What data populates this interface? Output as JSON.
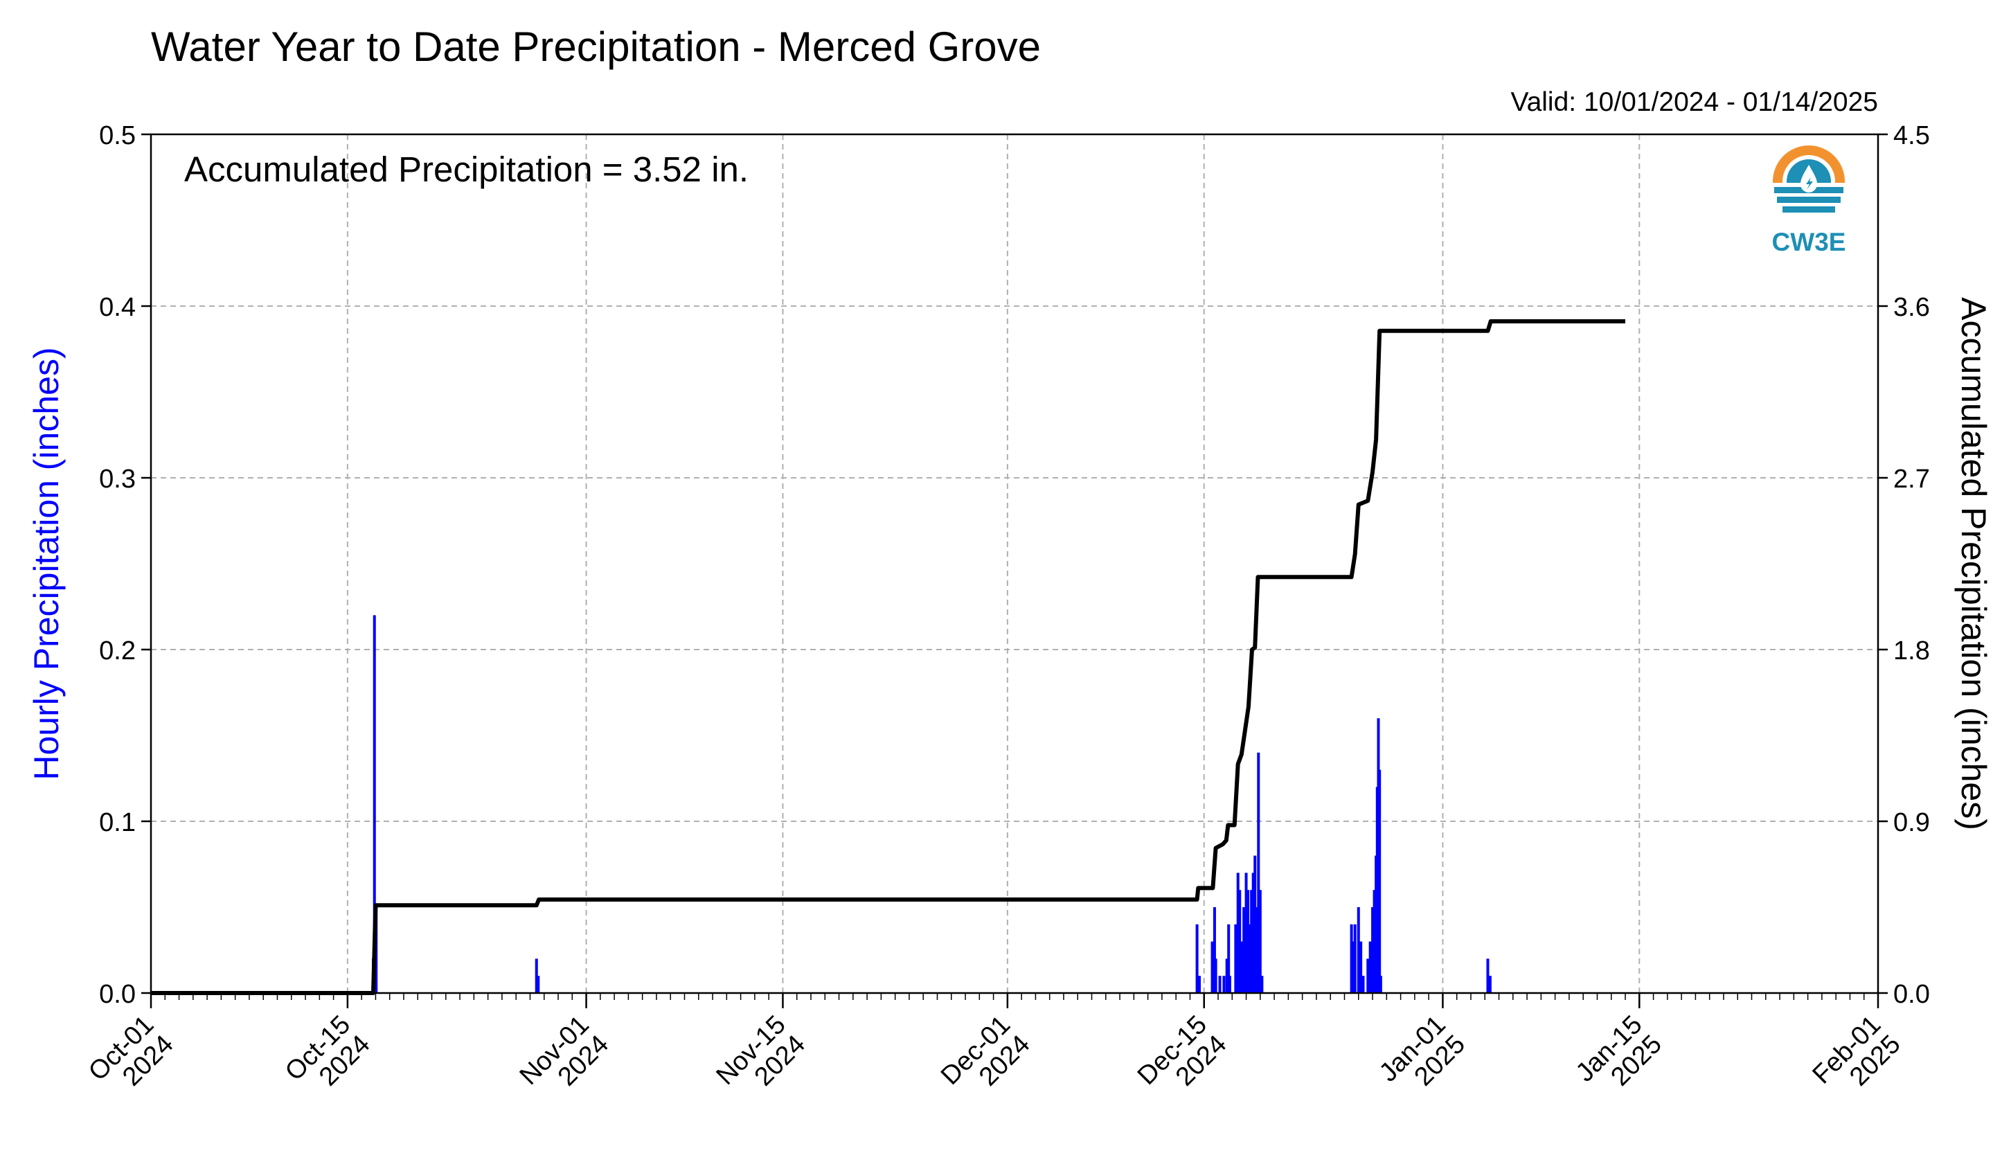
{
  "chart_data": {
    "type": "bar",
    "title": "Water Year to Date Precipitation - Merced Grove",
    "subtitle": "Valid: 10/01/2024 - 01/14/2025",
    "annotation": "Accumulated Precipitation = 3.52 in.",
    "logo_text": "CW3E",
    "ylabel": "Hourly Precipitation (inches)",
    "y2label": "Accumulated Precipitation (inches)",
    "ylim": [
      0,
      0.5
    ],
    "y2lim": [
      0,
      4.5
    ],
    "yticks": [
      "0.0",
      "0.1",
      "0.2",
      "0.3",
      "0.4",
      "0.5"
    ],
    "y2ticks": [
      "0.0",
      "0.9",
      "1.8",
      "2.7",
      "3.6",
      "4.5"
    ],
    "xlim": [
      "2024-10-01",
      "2025-02-01"
    ],
    "xtick_labels": [
      {
        "date": "2024-10-01",
        "line1": "Oct-01",
        "line2": "2024"
      },
      {
        "date": "2024-10-15",
        "line1": "Oct-15",
        "line2": "2024"
      },
      {
        "date": "2024-11-01",
        "line1": "Nov-01",
        "line2": "2024"
      },
      {
        "date": "2024-11-15",
        "line1": "Nov-15",
        "line2": "2024"
      },
      {
        "date": "2024-12-01",
        "line1": "Dec-01",
        "line2": "2024"
      },
      {
        "date": "2024-12-15",
        "line1": "Dec-15",
        "line2": "2024"
      },
      {
        "date": "2025-01-01",
        "line1": "Jan-01",
        "line2": "2025"
      },
      {
        "date": "2025-01-15",
        "line1": "Jan-15",
        "line2": "2025"
      },
      {
        "date": "2025-02-01",
        "line1": "Feb-01",
        "line2": "2025"
      }
    ],
    "grid": true,
    "colors": {
      "hourly": "#0000ff",
      "accumulated": "#000000",
      "grid": "#b0b0b0",
      "logo_orange": "#f2922f",
      "logo_blue": "#1e8fb5"
    },
    "hourly_series": {
      "name": "Hourly Precipitation",
      "points": [
        {
          "t": "2024-10-16T20:00",
          "v": 0.02
        },
        {
          "t": "2024-10-16T22:00",
          "v": 0.22
        },
        {
          "t": "2024-10-17T01:00",
          "v": 0.05
        },
        {
          "t": "2024-10-28T11:00",
          "v": 0.02
        },
        {
          "t": "2024-10-28T14:00",
          "v": 0.01
        },
        {
          "t": "2024-12-14T12:00",
          "v": 0.04
        },
        {
          "t": "2024-12-14T16:00",
          "v": 0.01
        },
        {
          "t": "2024-12-15T14:00",
          "v": 0.03
        },
        {
          "t": "2024-12-15T18:00",
          "v": 0.05
        },
        {
          "t": "2024-12-15T20:00",
          "v": 0.02
        },
        {
          "t": "2024-12-16T03:00",
          "v": 0.01
        },
        {
          "t": "2024-12-16T10:00",
          "v": 0.01
        },
        {
          "t": "2024-12-16T15:00",
          "v": 0.02
        },
        {
          "t": "2024-12-16T18:00",
          "v": 0.04
        },
        {
          "t": "2024-12-16T20:00",
          "v": 0.01
        },
        {
          "t": "2024-12-17T06:00",
          "v": 0.04
        },
        {
          "t": "2024-12-17T10:00",
          "v": 0.07
        },
        {
          "t": "2024-12-17T13:00",
          "v": 0.06
        },
        {
          "t": "2024-12-17T16:00",
          "v": 0.03
        },
        {
          "t": "2024-12-17T20:00",
          "v": 0.05
        },
        {
          "t": "2024-12-18T00:00",
          "v": 0.07
        },
        {
          "t": "2024-12-18T03:00",
          "v": 0.06
        },
        {
          "t": "2024-12-18T06:00",
          "v": 0.04
        },
        {
          "t": "2024-12-18T09:00",
          "v": 0.06
        },
        {
          "t": "2024-12-18T12:00",
          "v": 0.07
        },
        {
          "t": "2024-12-18T15:00",
          "v": 0.08
        },
        {
          "t": "2024-12-18T18:00",
          "v": 0.05
        },
        {
          "t": "2024-12-18T21:00",
          "v": 0.14
        },
        {
          "t": "2024-12-19T00:00",
          "v": 0.06
        },
        {
          "t": "2024-12-19T03:00",
          "v": 0.01
        },
        {
          "t": "2024-12-25T12:00",
          "v": 0.04
        },
        {
          "t": "2024-12-25T15:00",
          "v": 0.03
        },
        {
          "t": "2024-12-25T18:00",
          "v": 0.04
        },
        {
          "t": "2024-12-26T00:00",
          "v": 0.05
        },
        {
          "t": "2024-12-26T04:00",
          "v": 0.03
        },
        {
          "t": "2024-12-26T08:00",
          "v": 0.01
        },
        {
          "t": "2024-12-26T16:00",
          "v": 0.02
        },
        {
          "t": "2024-12-26T20:00",
          "v": 0.03
        },
        {
          "t": "2024-12-27T00:00",
          "v": 0.05
        },
        {
          "t": "2024-12-27T03:00",
          "v": 0.06
        },
        {
          "t": "2024-12-27T06:00",
          "v": 0.08
        },
        {
          "t": "2024-12-27T08:00",
          "v": 0.12
        },
        {
          "t": "2024-12-27T10:00",
          "v": 0.16
        },
        {
          "t": "2024-12-27T12:00",
          "v": 0.13
        },
        {
          "t": "2024-12-27T14:00",
          "v": 0.01
        },
        {
          "t": "2025-01-04T05:00",
          "v": 0.02
        },
        {
          "t": "2025-01-04T09:00",
          "v": 0.01
        }
      ]
    },
    "accumulated_series": {
      "name": "Accumulated Precipitation",
      "points": [
        {
          "t": "2024-10-01T00:00",
          "v": 0.0
        },
        {
          "t": "2024-10-16T20:00",
          "v": 0.0
        },
        {
          "t": "2024-10-17T00:00",
          "v": 0.46
        },
        {
          "t": "2024-10-28T11:00",
          "v": 0.46
        },
        {
          "t": "2024-10-28T15:00",
          "v": 0.49
        },
        {
          "t": "2024-12-14T12:00",
          "v": 0.49
        },
        {
          "t": "2024-12-14T14:00",
          "v": 0.55
        },
        {
          "t": "2024-12-15T15:00",
          "v": 0.55
        },
        {
          "t": "2024-12-15T20:00",
          "v": 0.76
        },
        {
          "t": "2024-12-16T08:00",
          "v": 0.78
        },
        {
          "t": "2024-12-16T14:00",
          "v": 0.8
        },
        {
          "t": "2024-12-16T17:00",
          "v": 0.88
        },
        {
          "t": "2024-12-17T04:00",
          "v": 0.88
        },
        {
          "t": "2024-12-17T10:00",
          "v": 1.2
        },
        {
          "t": "2024-12-17T16:00",
          "v": 1.25
        },
        {
          "t": "2024-12-18T04:00",
          "v": 1.5
        },
        {
          "t": "2024-12-18T10:00",
          "v": 1.8
        },
        {
          "t": "2024-12-18T15:00",
          "v": 1.81
        },
        {
          "t": "2024-12-18T20:00",
          "v": 2.18
        },
        {
          "t": "2025-12-25T12:00",
          "v": null
        },
        {
          "t": "2024-12-25T12:00",
          "v": 2.18
        },
        {
          "t": "2024-12-25T18:00",
          "v": 2.3
        },
        {
          "t": "2024-12-26T00:00",
          "v": 2.56
        },
        {
          "t": "2024-12-26T16:00",
          "v": 2.58
        },
        {
          "t": "2024-12-27T00:00",
          "v": 2.73
        },
        {
          "t": "2024-12-27T06:00",
          "v": 2.9
        },
        {
          "t": "2024-12-27T12:00",
          "v": 3.47
        },
        {
          "t": "2025-01-04T05:00",
          "v": 3.47
        },
        {
          "t": "2025-01-04T10:00",
          "v": 3.52
        },
        {
          "t": "2025-01-14T00:00",
          "v": 3.52
        }
      ]
    }
  }
}
